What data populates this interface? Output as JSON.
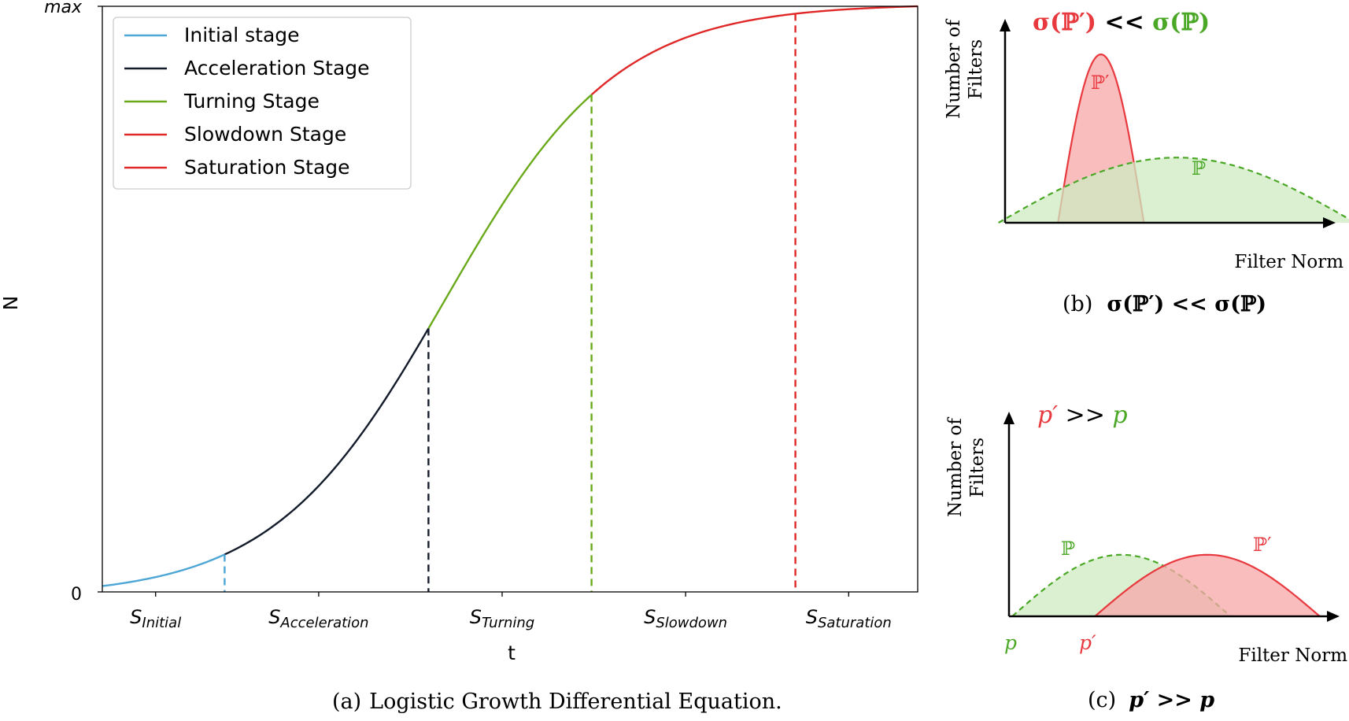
{
  "chart_data": [
    {
      "type": "line",
      "caption_label": "(a)",
      "caption_text": "Logistic Growth Differential Equation.",
      "xlabel": "t",
      "ylabel": "N",
      "y_tick_labels": [
        "0",
        "max"
      ],
      "x_tick_labels": [
        {
          "base": "S",
          "sub": "Initial"
        },
        {
          "base": "S",
          "sub": "Acceleration"
        },
        {
          "base": "S",
          "sub": "Turning"
        },
        {
          "base": "S",
          "sub": "Slowdown"
        },
        {
          "base": "S",
          "sub": "Saturation"
        }
      ],
      "ylim": [
        0,
        1
      ],
      "xlim": [
        0,
        1
      ],
      "logistic": {
        "midpoint": 0.42,
        "rate": 9.5
      },
      "legend_position": "top-left",
      "series": [
        {
          "name": "Initial stage",
          "color": "#4ea6d6",
          "x_range": [
            0.0,
            0.15
          ],
          "boundary_dashed": true
        },
        {
          "name": "Acceleration Stage",
          "color": "#141c2c",
          "x_range": [
            0.15,
            0.4
          ],
          "boundary_dashed": true
        },
        {
          "name": "Turning Stage",
          "color": "#6aaa1a",
          "x_range": [
            0.4,
            0.6
          ],
          "boundary_dashed": true
        },
        {
          "name": "Slowdown Stage",
          "color": "#e02828",
          "x_range": [
            0.6,
            0.85
          ],
          "boundary_dashed": true
        },
        {
          "name": "Saturation Stage",
          "color": "#e02828",
          "x_range": [
            0.85,
            1.0
          ],
          "boundary_dashed": false
        }
      ]
    },
    {
      "type": "area",
      "caption_label": "(b)",
      "caption_formula": "σ(ℙ′) << σ(ℙ)",
      "title_left": "σ(ℙ′)",
      "title_op": " << ",
      "title_right": "σ(ℙ)",
      "ylabel_line1": "Number of",
      "ylabel_line2": "Filters",
      "xlabel": "Filter Norm",
      "series": [
        {
          "name": "ℙ′",
          "color": "#e8393e",
          "fill": "#f7a7a8",
          "center": 0.29,
          "half_width": 0.13,
          "peak": 0.93,
          "style": "solid"
        },
        {
          "name": "ℙ",
          "color": "#4aa826",
          "fill": "#cdebc1",
          "center": 0.52,
          "half_width": 0.54,
          "peak": 0.36,
          "style": "dashed"
        }
      ]
    },
    {
      "type": "area",
      "caption_label": "(c)",
      "caption_formula": "p′ >> p",
      "title_left": "p′",
      "title_op": " >> ",
      "title_right": "p",
      "ylabel_line1": "Number of",
      "ylabel_line2": "Filters",
      "xlabel": "Filter Norm",
      "x_marks": [
        "p",
        "p′"
      ],
      "series": [
        {
          "name": "ℙ",
          "color": "#4aa826",
          "fill": "#cdebc1",
          "center": 0.34,
          "half_width": 0.33,
          "peak": 0.34,
          "style": "dashed"
        },
        {
          "name": "ℙ′",
          "color": "#e8393e",
          "fill": "#f7a7a8",
          "center": 0.6,
          "half_width": 0.34,
          "peak": 0.34,
          "style": "solid"
        }
      ]
    }
  ]
}
